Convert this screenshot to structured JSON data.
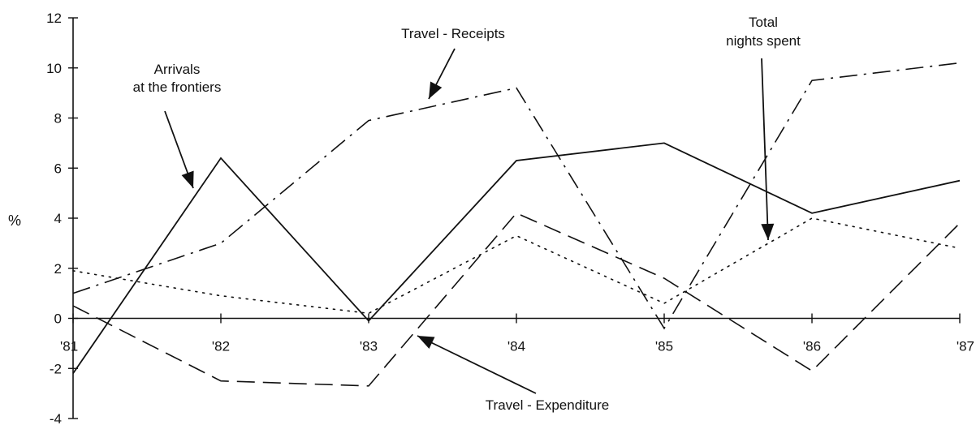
{
  "chart_data": {
    "type": "line",
    "title": "",
    "xlabel": "",
    "ylabel": "%",
    "x": [
      "'81",
      "'82",
      "'83",
      "'84",
      "'85",
      "'86",
      "'87"
    ],
    "ylim": [
      -4,
      12
    ],
    "yticks": [
      -4,
      -2,
      0,
      2,
      4,
      6,
      8,
      10,
      12
    ],
    "grid": false,
    "legend": "none",
    "series": [
      {
        "name": "Arrivals at the frontiers",
        "style": "solid",
        "color": "#111111",
        "values": [
          -2.2,
          6.4,
          -0.1,
          6.3,
          7.0,
          4.2,
          5.5
        ]
      },
      {
        "name": "Travel - Receipts",
        "style": "dashdot",
        "color": "#111111",
        "values": [
          1.0,
          3.0,
          7.9,
          9.2,
          -0.4,
          9.5,
          10.2
        ]
      },
      {
        "name": "Total nights spent",
        "style": "dotted",
        "color": "#111111",
        "values": [
          1.9,
          0.9,
          0.2,
          3.3,
          0.6,
          4.0,
          2.8
        ]
      },
      {
        "name": "Travel - Expenditure",
        "style": "dashed",
        "color": "#111111",
        "values": [
          0.5,
          -2.5,
          -2.7,
          4.2,
          1.6,
          -2.1,
          3.8
        ]
      }
    ],
    "annotations": [
      {
        "lines": [
          "Arrivals",
          "at the frontiers"
        ],
        "series": "Arrivals at the frontiers"
      },
      {
        "lines": [
          "Travel - Receipts"
        ],
        "series": "Travel - Receipts"
      },
      {
        "lines": [
          "Total",
          "nights spent"
        ],
        "series": "Total nights spent"
      },
      {
        "lines": [
          "Travel - Expenditure"
        ],
        "series": "Travel - Expenditure"
      }
    ]
  }
}
